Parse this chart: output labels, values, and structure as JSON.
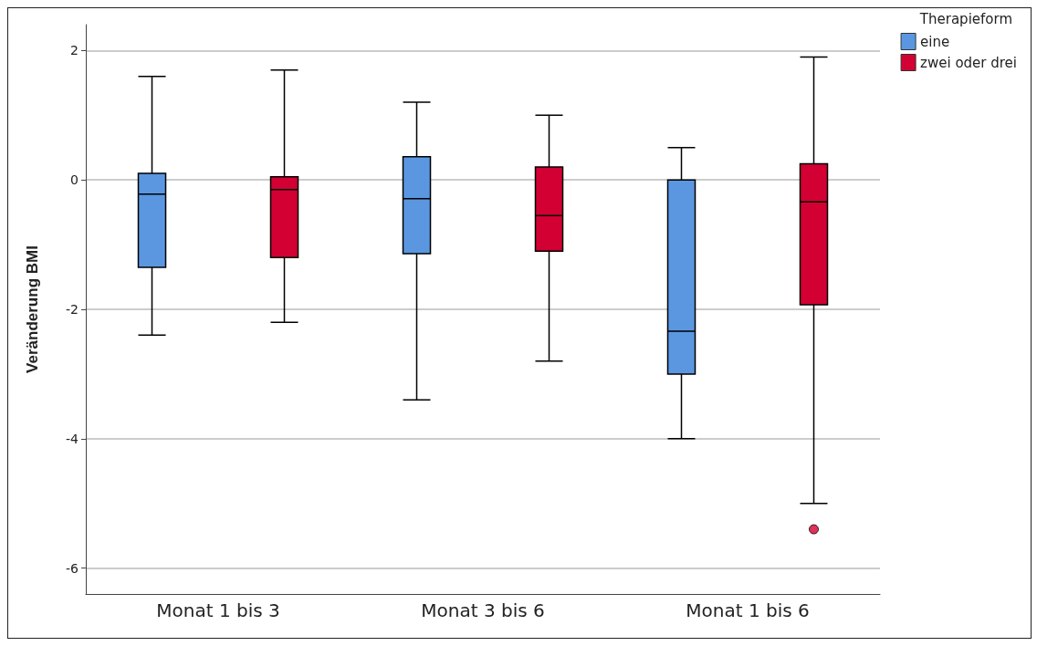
{
  "chart_data": {
    "type": "box",
    "ylabel": "Veränderung BMI",
    "legend_title": "Therapieform",
    "legend": "top right",
    "grid": "y",
    "categories": [
      "Monat 1 bis 3",
      "Monat 3 bis 6",
      "Monat 1 bis 6"
    ],
    "ylim": [
      -6.4,
      2.4
    ],
    "yticks": [
      -6,
      -4,
      -2,
      0,
      2
    ],
    "series": [
      {
        "name": "eine",
        "color": "#5b97e1",
        "boxes": [
          {
            "low": -2.4,
            "q1": -1.35,
            "median": -0.22,
            "q3": 0.1,
            "high": 1.6
          },
          {
            "low": -3.4,
            "q1": -1.14,
            "median": -0.29,
            "q3": 0.36,
            "high": 1.2
          },
          {
            "low": -4.0,
            "q1": -3.0,
            "median": -2.34,
            "q3": 0.0,
            "high": 0.5
          }
        ]
      },
      {
        "name": "zwei oder drei",
        "color": "#d20033",
        "boxes": [
          {
            "low": -2.2,
            "q1": -1.2,
            "median": -0.15,
            "q3": 0.05,
            "high": 1.7
          },
          {
            "low": -2.8,
            "q1": -1.1,
            "median": -0.55,
            "q3": 0.2,
            "high": 1.0
          },
          {
            "low": -5.0,
            "q1": -1.93,
            "median": -0.34,
            "q3": 0.25,
            "high": 1.9,
            "outliers": [
              -5.4
            ]
          }
        ]
      }
    ]
  }
}
